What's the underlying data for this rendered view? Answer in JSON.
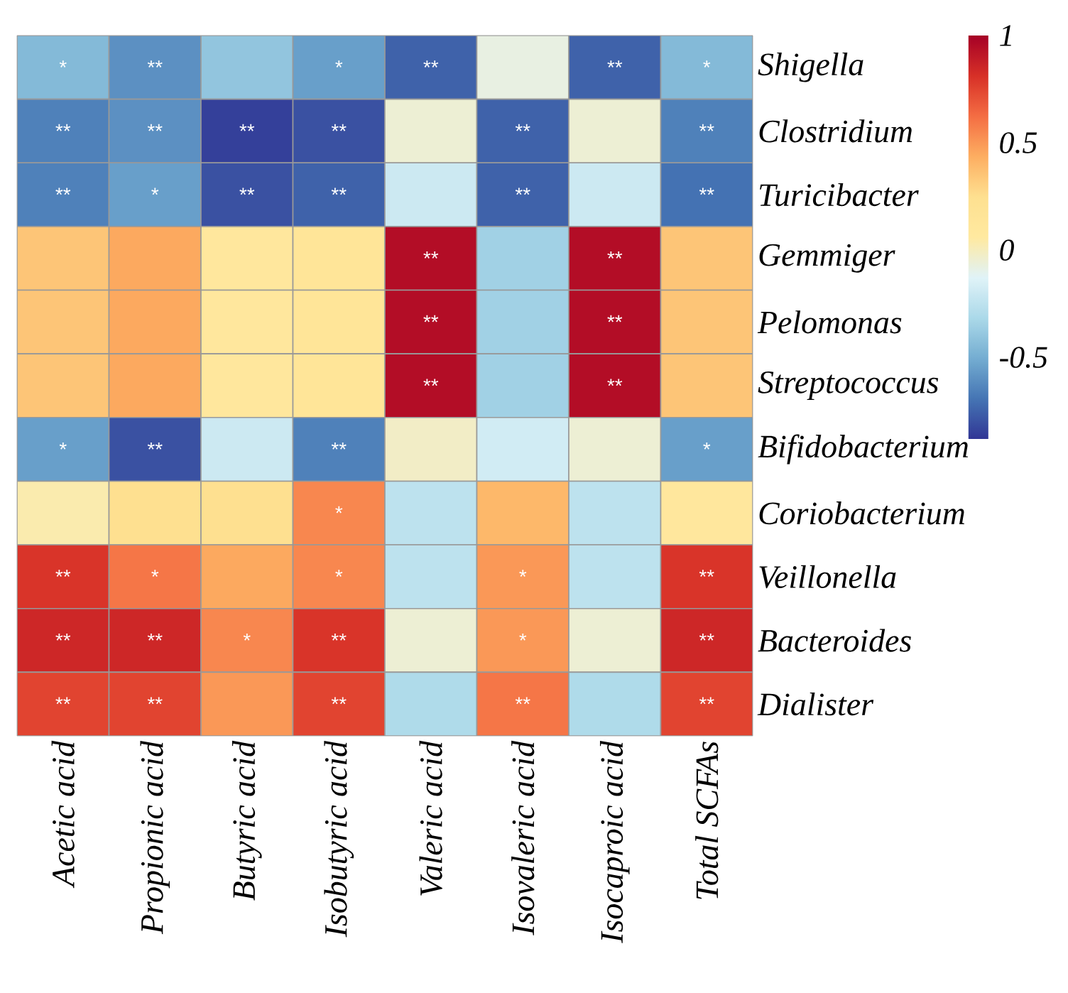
{
  "chart_data": {
    "type": "heatmap",
    "categories": [
      "Acetic acid",
      "Propionic acid",
      "Butyric acid",
      "Isobutyric acid",
      "Valeric acid",
      "Isovaleric acid",
      "Isocaproic acid",
      "Total SCFAs"
    ],
    "y_categories": [
      "Shigella",
      "Clostridium",
      "Turicibacter",
      "Gemmiger",
      "Pelomonas",
      "Streptococcus",
      "Bifidobacterium",
      "Coriobacterium",
      "Veillonella",
      "Bacteroides",
      "Dialister"
    ],
    "cells": [
      [
        -0.45,
        -0.6,
        -0.4,
        -0.55,
        -0.75,
        -0.08,
        -0.75,
        -0.45
      ],
      [
        -0.65,
        -0.6,
        -0.85,
        -0.8,
        -0.05,
        -0.75,
        -0.05,
        -0.65
      ],
      [
        -0.65,
        -0.55,
        -0.8,
        -0.75,
        -0.2,
        -0.75,
        -0.2,
        -0.7
      ],
      [
        0.35,
        0.45,
        0.1,
        0.15,
        0.95,
        -0.35,
        0.95,
        0.35
      ],
      [
        0.35,
        0.45,
        0.1,
        0.15,
        0.95,
        -0.35,
        0.95,
        0.35
      ],
      [
        0.35,
        0.45,
        0.1,
        0.15,
        0.95,
        -0.35,
        0.95,
        0.35
      ],
      [
        -0.55,
        -0.8,
        -0.2,
        -0.65,
        -0.02,
        -0.18,
        -0.05,
        -0.55
      ],
      [
        0.03,
        0.25,
        0.25,
        0.55,
        -0.25,
        0.4,
        -0.25,
        0.1
      ],
      [
        0.8,
        0.6,
        0.45,
        0.55,
        -0.25,
        0.5,
        -0.25,
        0.8
      ],
      [
        0.85,
        0.85,
        0.55,
        0.8,
        -0.05,
        0.5,
        -0.05,
        0.85
      ],
      [
        0.75,
        0.75,
        0.5,
        0.75,
        -0.3,
        0.6,
        -0.3,
        0.75
      ]
    ],
    "cell_labels": [
      [
        "*",
        "**",
        null,
        "*",
        "**",
        null,
        "**",
        "*"
      ],
      [
        "**",
        "**",
        "**",
        "**",
        null,
        "**",
        null,
        "**"
      ],
      [
        "**",
        "*",
        "**",
        "**",
        null,
        "**",
        null,
        "**"
      ],
      [
        null,
        null,
        null,
        null,
        "**",
        null,
        "**",
        null
      ],
      [
        null,
        null,
        null,
        null,
        "**",
        null,
        "**",
        null
      ],
      [
        null,
        null,
        null,
        null,
        "**",
        null,
        "**",
        null
      ],
      [
        "*",
        "**",
        null,
        "**",
        null,
        null,
        null,
        "*"
      ],
      [
        null,
        null,
        null,
        "*",
        null,
        null,
        null,
        null
      ],
      [
        "**",
        "*",
        null,
        "*",
        null,
        "*",
        null,
        "**"
      ],
      [
        "**",
        "**",
        "*",
        "**",
        null,
        "*",
        null,
        "**"
      ],
      [
        "**",
        "**",
        null,
        "**",
        null,
        "**",
        null,
        "**"
      ]
    ],
    "clim": [
      -0.88,
      1
    ],
    "cticks": [
      -0.5,
      0,
      0.5,
      1
    ]
  }
}
